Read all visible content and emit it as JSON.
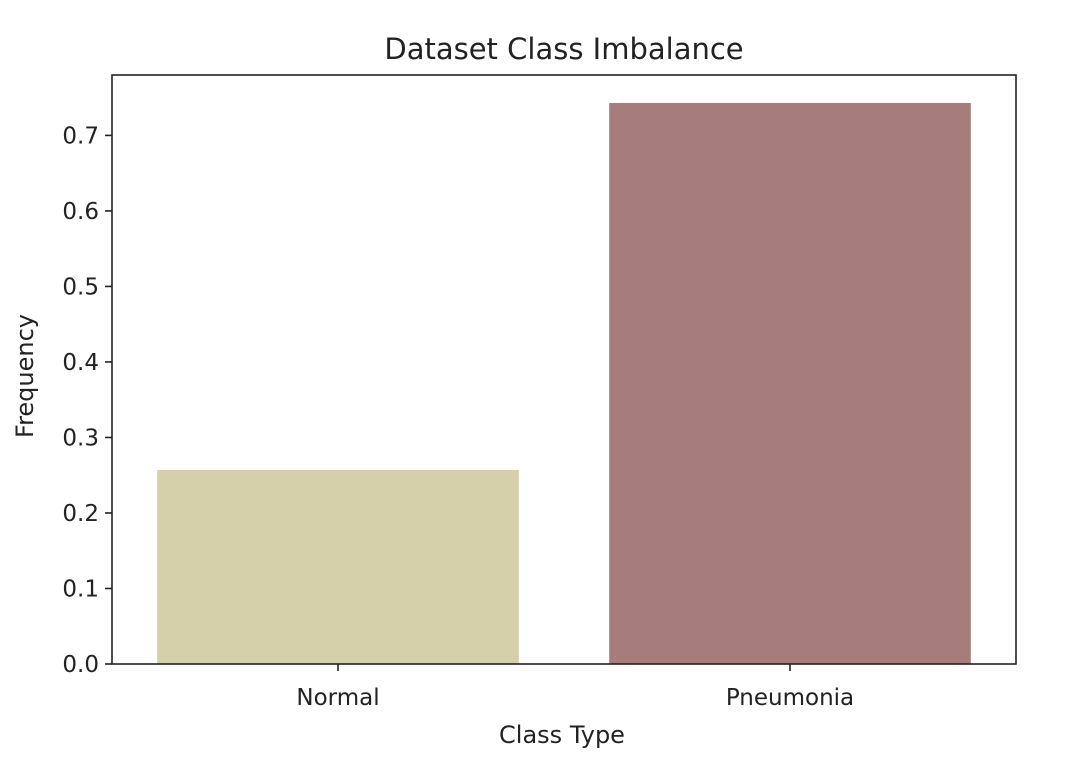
{
  "chart_data": {
    "type": "bar",
    "title": "Dataset Class Imbalance",
    "xlabel": "Class Type",
    "ylabel": "Frequency",
    "categories": [
      "Normal",
      "Pneumonia"
    ],
    "values": [
      0.257,
      0.743
    ],
    "colors": [
      "#d6d0aa",
      "#a67d7a"
    ],
    "ylim": [
      0,
      0.78
    ],
    "yticks": [
      0.0,
      0.1,
      0.2,
      0.3,
      0.4,
      0.5,
      0.6,
      0.7
    ],
    "ytick_labels": [
      "0.0",
      "0.1",
      "0.2",
      "0.3",
      "0.4",
      "0.5",
      "0.6",
      "0.7"
    ],
    "grid": false,
    "legend": "none"
  }
}
